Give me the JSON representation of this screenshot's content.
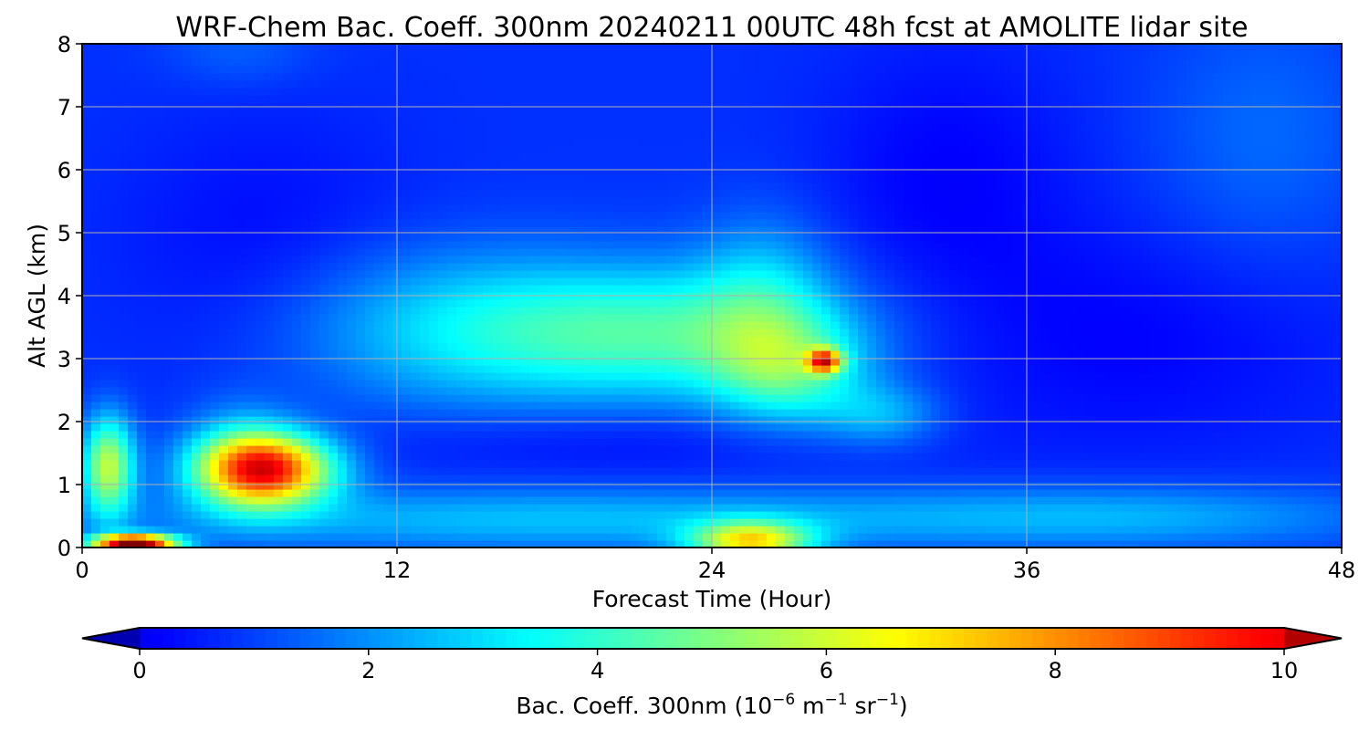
{
  "chart_data": {
    "type": "heatmap",
    "title": "WRF-Chem Bac. Coeff. 300nm  20240211 00UTC 48h fcst at AMOLITE lidar site",
    "xlabel": "Forecast Time (Hour)",
    "ylabel": "Alt AGL (km)",
    "xlim": [
      0,
      48
    ],
    "ylim": [
      0,
      8
    ],
    "xticks": [
      0,
      12,
      24,
      36,
      48
    ],
    "yticks": [
      0,
      1,
      2,
      3,
      4,
      5,
      6,
      7,
      8
    ],
    "grid": true,
    "colormap": "jet",
    "colorbar": {
      "label_main": "Bac. Coeff. 300nm  (10",
      "label_exp1": "−6",
      "label_mid": " m",
      "label_exp2": "−1",
      "label_end": " sr",
      "label_exp3": "−1",
      "label_close": ")",
      "orientation": "horizontal",
      "extend": "both",
      "vmin": 0,
      "vmax": 10,
      "ticks": [
        0,
        2,
        4,
        6,
        8,
        10
      ]
    },
    "background_value": 0.8,
    "features": [
      {
        "x": 2.0,
        "y": 0.07,
        "peak": 11.0,
        "sx": 1.1,
        "sy": 0.1
      },
      {
        "x": 1.0,
        "y": 1.3,
        "peak": 5.0,
        "sx": 0.7,
        "sy": 0.55
      },
      {
        "x": 7.0,
        "y": 1.25,
        "peak": 8.5,
        "sx": 1.8,
        "sy": 0.4
      },
      {
        "x": 6.0,
        "y": 1.5,
        "peak": 1.5,
        "sx": 1.5,
        "sy": 0.6
      },
      {
        "x": 25.5,
        "y": 0.1,
        "peak": 5.5,
        "sx": 1.6,
        "sy": 0.22
      },
      {
        "x": 18.0,
        "y": 0.45,
        "peak": 1.8,
        "sx": 12.0,
        "sy": 0.35
      },
      {
        "x": 40.0,
        "y": 0.5,
        "peak": 1.4,
        "sx": 7.0,
        "sy": 0.35
      },
      {
        "x": 22.0,
        "y": 3.4,
        "peak": 3.2,
        "sx": 5.0,
        "sy": 0.75
      },
      {
        "x": 14.0,
        "y": 3.5,
        "peak": 1.8,
        "sx": 4.5,
        "sy": 0.9
      },
      {
        "x": 26.0,
        "y": 4.0,
        "peak": 1.6,
        "sx": 1.8,
        "sy": 0.9
      },
      {
        "x": 27.0,
        "y": 2.8,
        "peak": 2.6,
        "sx": 2.0,
        "sy": 0.6
      },
      {
        "x": 28.3,
        "y": 2.97,
        "peak": 6.5,
        "sx": 0.45,
        "sy": 0.13
      },
      {
        "x": 30.5,
        "y": 2.1,
        "peak": 1.6,
        "sx": 1.6,
        "sy": 0.35
      },
      {
        "x": 45.0,
        "y": 6.5,
        "peak": 0.7,
        "sx": 3.0,
        "sy": 1.5
      },
      {
        "x": 6.0,
        "y": 7.9,
        "peak": 0.6,
        "sx": 2.0,
        "sy": 0.4
      },
      {
        "x": 33.0,
        "y": 6.0,
        "peak": -0.6,
        "sx": 3.5,
        "sy": 1.5
      },
      {
        "x": 40.0,
        "y": 3.3,
        "peak": -0.6,
        "sx": 6.0,
        "sy": 1.3
      },
      {
        "x": 20.0,
        "y": 1.7,
        "peak": -0.5,
        "sx": 7.0,
        "sy": 0.4
      },
      {
        "x": 7.0,
        "y": 4.8,
        "peak": -0.5,
        "sx": 4.0,
        "sy": 1.5
      }
    ]
  }
}
